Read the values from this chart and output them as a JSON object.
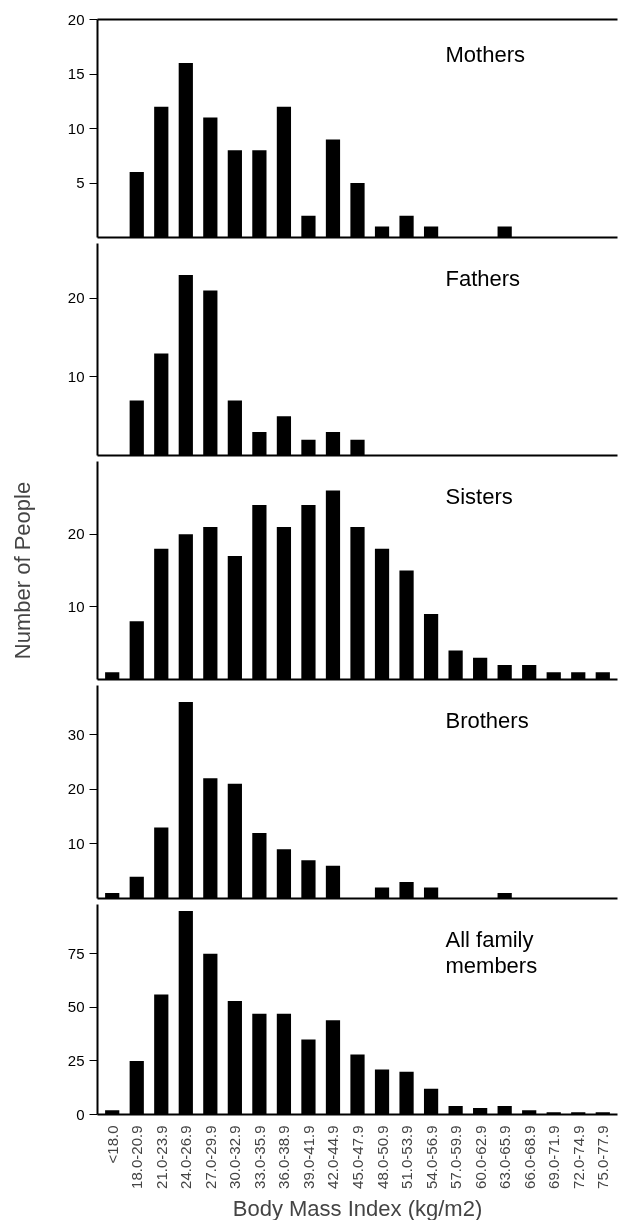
{
  "chart_data": [
    {
      "type": "bar",
      "title": "Mothers",
      "categories": [
        null,
        null,
        null,
        null,
        null,
        null,
        null,
        null,
        null,
        null,
        null,
        null,
        null,
        null,
        null,
        null,
        null,
        null,
        null,
        null,
        null
      ],
      "values": [
        0,
        6,
        12,
        16,
        11,
        8,
        8,
        12,
        2,
        9,
        5,
        1,
        2,
        1,
        0,
        0,
        1,
        0,
        0,
        0,
        0
      ],
      "color": "#000000",
      "ylim": [
        0,
        20
      ],
      "yticks": [
        5,
        10,
        15,
        20
      ],
      "tick_labels": "y"
    },
    {
      "type": "bar",
      "title": "Fathers",
      "categories": [
        null,
        null,
        null,
        null,
        null,
        null,
        null,
        null,
        null,
        null,
        null,
        null,
        null,
        null,
        null,
        null,
        null,
        null,
        null,
        null,
        null
      ],
      "values": [
        0,
        7,
        13,
        23,
        21,
        7,
        3,
        5,
        2,
        3,
        2,
        0,
        0,
        0,
        0,
        0,
        0,
        0,
        0,
        0,
        0
      ],
      "color": "#000000",
      "ylim": [
        0,
        27
      ],
      "yticks": [
        10,
        20
      ],
      "tick_labels": "y"
    },
    {
      "type": "bar",
      "title": "Sisters",
      "ylabel": "Number of People",
      "categories": [
        null,
        null,
        null,
        null,
        null,
        null,
        null,
        null,
        null,
        null,
        null,
        null,
        null,
        null,
        null,
        null,
        null,
        null,
        null,
        null,
        null
      ],
      "values": [
        1,
        8,
        18,
        20,
        21,
        17,
        24,
        21,
        24,
        26,
        21,
        18,
        15,
        9,
        4,
        3,
        2,
        2,
        1,
        1,
        1
      ],
      "color": "#000000",
      "ylim": [
        0,
        30
      ],
      "yticks": [
        10,
        20
      ],
      "tick_labels": "y"
    },
    {
      "type": "bar",
      "title": "Brothers",
      "categories": [
        null,
        null,
        null,
        null,
        null,
        null,
        null,
        null,
        null,
        null,
        null,
        null,
        null,
        null,
        null,
        null,
        null,
        null,
        null,
        null,
        null
      ],
      "values": [
        1,
        4,
        13,
        36,
        22,
        21,
        12,
        9,
        7,
        6,
        0,
        2,
        3,
        2,
        0,
        0,
        1,
        0,
        0,
        0,
        0
      ],
      "color": "#000000",
      "ylim": [
        0,
        39
      ],
      "yticks": [
        10,
        20,
        30
      ],
      "tick_labels": "y"
    },
    {
      "type": "bar",
      "title": "All family\nmembers",
      "xlabel": "Body Mass Index (kg/m2)",
      "categories": [
        "<18.0",
        "18.0-20.9",
        "21.0-23.9",
        "24.0-26.9",
        "27.0-29.9",
        "30.0-32.9",
        "33.0-35.9",
        "36.0-38.9",
        "39.0-41.9",
        "42.0-44.9",
        "45.0-47.9",
        "48.0-50.9",
        "51.0-53.9",
        "54.0-56.9",
        "57.0-59.9",
        "60.0-62.9",
        "63.0-65.9",
        "66.0-68.9",
        "69.0-71.9",
        "72.0-74.9",
        "75.0-77.9"
      ],
      "values": [
        2,
        25,
        56,
        95,
        75,
        53,
        47,
        47,
        35,
        44,
        28,
        21,
        20,
        12,
        4,
        3,
        4,
        2,
        1,
        1,
        1
      ],
      "color": "#000000",
      "ylim": [
        0,
        98
      ],
      "yticks": [
        0,
        25,
        50,
        75
      ]
    }
  ]
}
